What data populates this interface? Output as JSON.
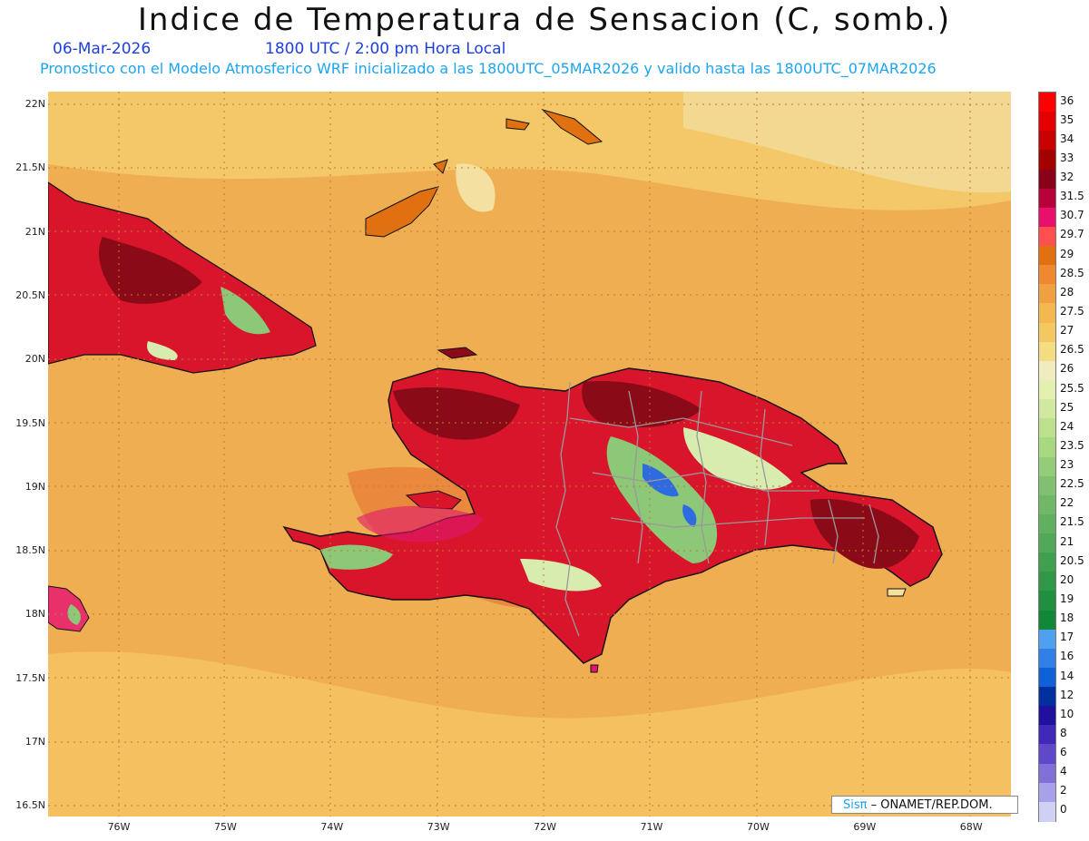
{
  "header": {
    "title": "Indice de Temperatura de Sensacion (C, somb.)",
    "date": "06-Mar-2026",
    "valid_time": "1800 UTC / 2:00 pm Hora Local",
    "subtitle": "Pronostico con el Modelo Atmosferico WRF inicializado a las 1800UTC_05MAR2026 y valido hasta las  1800UTC_07MAR2026"
  },
  "axes": {
    "lat_labels": [
      "22N",
      "21.5N",
      "21N",
      "20.5N",
      "20N",
      "19.5N",
      "19N",
      "18.5N",
      "18N",
      "17.5N",
      "17N",
      "16.5N"
    ],
    "lon_labels": [
      "76W",
      "75W",
      "74W",
      "73W",
      "72W",
      "71W",
      "70W",
      "69W",
      "68W"
    ]
  },
  "legend": {
    "labels": [
      "36",
      "35",
      "34",
      "33",
      "32",
      "31.5",
      "30.7",
      "29.7",
      "29",
      "28.5",
      "28",
      "27.5",
      "27",
      "26.5",
      "26",
      "25.5",
      "25",
      "24",
      "23.5",
      "23",
      "22.5",
      "22",
      "21.5",
      "21",
      "20.5",
      "20",
      "19",
      "18",
      "17",
      "16",
      "14",
      "12",
      "10",
      "8",
      "6",
      "4",
      "2",
      "0"
    ],
    "colors": [
      "#ff0000",
      "#e50000",
      "#c80000",
      "#a30000",
      "#8a0018",
      "#b8003a",
      "#e8106a",
      "#ff5050",
      "#e07010",
      "#f08830",
      "#f0a040",
      "#f4b850",
      "#f4c860",
      "#f4dc80",
      "#f0ecc0",
      "#e4f0b0",
      "#d0e8a0",
      "#bce08c",
      "#a8d880",
      "#94cc78",
      "#80c070",
      "#70b868",
      "#60b060",
      "#50a858",
      "#40a050",
      "#309848",
      "#209040",
      "#108838",
      "#50a0f0",
      "#3080e8",
      "#1060d8",
      "#0030a0",
      "#2010a0",
      "#4028b8",
      "#6048c8",
      "#8070d8",
      "#a8a0e8",
      "#d0d0f4"
    ]
  },
  "map": {
    "colors": {
      "ocean": "#f0ae52",
      "ocean_light": "#f4c868",
      "ocean_pale": "#f2d890",
      "warm": "#e8803a",
      "hot_red": "#d8152b",
      "dark_red": "#8a0a18",
      "magenta": "#e0176c",
      "green": "#8cc878",
      "pale_green": "#d8ecb0",
      "blue": "#2f6be0",
      "border": "#999999",
      "coast": "#111111"
    }
  },
  "credit": {
    "sis": "Sisπ",
    "org": " – ONAMET/REP.DOM."
  }
}
